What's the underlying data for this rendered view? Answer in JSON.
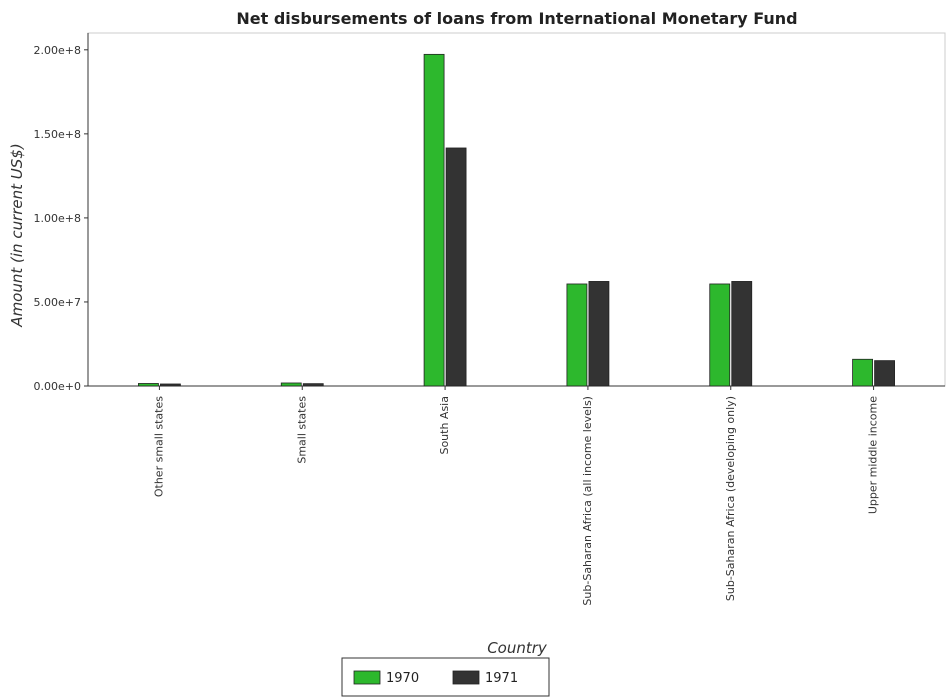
{
  "chart_data": {
    "type": "bar",
    "title": "Net disbursements of loans from International Monetary Fund",
    "xlabel": "Country",
    "ylabel": "Amount (in current US$)",
    "categories": [
      "Other small states",
      "Small states",
      "South Asia",
      "Sub-Saharan Africa (all income levels)",
      "Sub-Saharan Africa (developing only)",
      "Upper middle income"
    ],
    "series": [
      {
        "name": "1970",
        "color": "#2db82d",
        "values": [
          1500000,
          1800000,
          197300000,
          60700000,
          60700000,
          15900000
        ]
      },
      {
        "name": "1971",
        "color": "#333333",
        "values": [
          1200000,
          1400000,
          141600000,
          62200000,
          62200000,
          15100000
        ]
      }
    ],
    "ylim": [
      0,
      210000000
    ],
    "yticks": [
      0,
      50000000,
      100000000,
      150000000,
      200000000
    ],
    "ytick_labels": [
      "0.00e+0",
      "5.00e+7",
      "1.00e+8",
      "1.50e+8",
      "2.00e+8"
    ],
    "grid": false,
    "legend_position": "bottom-center"
  }
}
